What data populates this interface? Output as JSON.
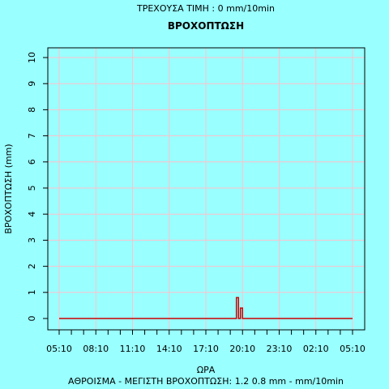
{
  "header": {
    "current_value": "ΤΡΕΧΟΥΣΑ ΤΙΜΗ : 0 mm/10min"
  },
  "footer": {
    "summary": "ΑΘΡΟΙΣΜΑ - ΜΕΓΙΣΤΗ ΒΡΟΧΟΠΤΩΣΗ: 1.2 0.8 mm - mm/10min"
  },
  "chart_data": {
    "type": "line",
    "title": "ΒΡΟΧΟΠΤΩΣΗ",
    "xlabel": "ΩΡΑ",
    "ylabel": "ΒΡΟΧΟΠΤΩΣΗ (mm)",
    "x_tick_labels": [
      "05:10",
      "08:10",
      "11:10",
      "14:10",
      "17:10",
      "20:10",
      "23:10",
      "02:10",
      "05:10"
    ],
    "y_ticks": [
      0,
      1,
      2,
      3,
      4,
      5,
      6,
      7,
      8,
      9,
      10
    ],
    "ylim": [
      0,
      10
    ],
    "x_unit": "hours since 05:10",
    "xlim": [
      0,
      24
    ],
    "grid": true,
    "series": [
      {
        "name": "",
        "color": "#cc0000",
        "x": [
          0,
          14.5,
          14.5,
          14.67,
          14.67,
          14.83,
          14.83,
          15.0,
          15.0,
          24
        ],
        "y": [
          0,
          0,
          0.8,
          0.8,
          0,
          0,
          0.4,
          0.4,
          0,
          0
        ]
      }
    ]
  },
  "colors": {
    "background": "#99ffff",
    "grid": "#ffc0cb",
    "line": "#cc0000"
  }
}
